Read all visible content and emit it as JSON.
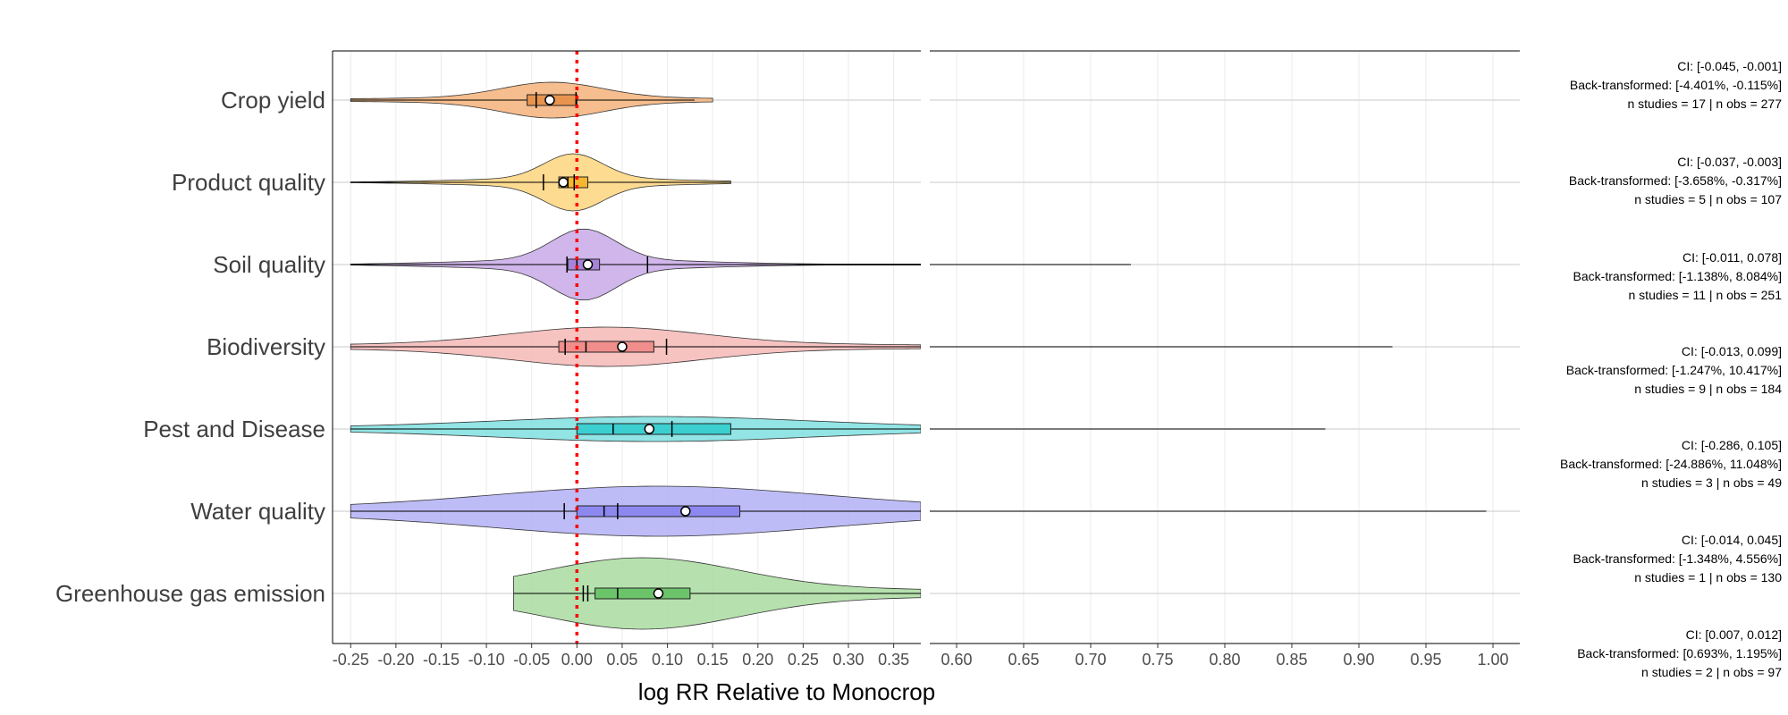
{
  "chart_data": {
    "type": "violin",
    "xlabel": "log RR Relative to Monocrop",
    "ylabel": "",
    "xlim_left": [
      -0.27,
      0.38
    ],
    "xlim_right": [
      0.58,
      1.02
    ],
    "xticks_left": [
      -0.25,
      -0.2,
      -0.15,
      -0.1,
      -0.05,
      0.0,
      0.05,
      0.1,
      0.15,
      0.2,
      0.25,
      0.3,
      0.35
    ],
    "xtick_labels_left": [
      "-0.25",
      "-0.20",
      "-0.15",
      "-0.10",
      "-0.05",
      "0.00",
      "0.05",
      "0.10",
      "0.15",
      "0.20",
      "0.25",
      "0.30",
      "0.35"
    ],
    "xticks_right": [
      0.6,
      0.65,
      0.7,
      0.75,
      0.8,
      0.85,
      0.9,
      0.95,
      1.0
    ],
    "xtick_labels_right": [
      "0.60",
      "0.65",
      "0.70",
      "0.75",
      "0.80",
      "0.85",
      "0.90",
      "0.95",
      "1.00"
    ],
    "reference_line": 0.0,
    "reference_color": "#ff0000",
    "grid": true,
    "legend": "none",
    "categories": [
      {
        "name": "Crop yield",
        "color": "#f5b27a",
        "box_color": "#e8944e",
        "min": -0.25,
        "max": 0.15,
        "whisker_max": 0.13,
        "q1": -0.055,
        "median": -0.03,
        "q3": 0.0,
        "mean": -0.03,
        "ci": [
          -0.045,
          -0.001
        ],
        "break_max": null
      },
      {
        "name": "Product quality",
        "color": "#fdd57e",
        "box_color": "#f5b731",
        "min": -0.25,
        "max": 0.17,
        "whisker_max": 0.17,
        "q1": -0.02,
        "median": -0.01,
        "q3": 0.012,
        "mean": -0.015,
        "ci": [
          -0.037,
          -0.003
        ],
        "break_max": null
      },
      {
        "name": "Soil quality",
        "color": "#c8a9e6",
        "box_color": "#a685d8",
        "min": -0.25,
        "max": 0.38,
        "whisker_max": 0.38,
        "q1": -0.01,
        "median": 0.0,
        "q3": 0.025,
        "mean": 0.012,
        "ci": [
          -0.011,
          0.078
        ],
        "break_max": 0.73
      },
      {
        "name": "Biodiversity",
        "color": "#f5b8b6",
        "box_color": "#f08e8c",
        "min": -0.25,
        "max": 0.38,
        "whisker_max": 0.38,
        "q1": -0.02,
        "median": 0.01,
        "q3": 0.085,
        "mean": 0.05,
        "ci": [
          -0.013,
          0.099
        ],
        "break_max": 0.925
      },
      {
        "name": "Pest and Disease",
        "color": "#7fdfe0",
        "box_color": "#3ccfd0",
        "min": -0.25,
        "max": 0.38,
        "whisker_max": 0.38,
        "q1": 0.0,
        "median": 0.04,
        "q3": 0.17,
        "mean": 0.08,
        "ci": [
          -0.286,
          0.105
        ],
        "break_max": 0.875
      },
      {
        "name": "Water quality",
        "color": "#b3b0f5",
        "box_color": "#8c88f0",
        "min": -0.25,
        "max": 0.38,
        "whisker_max": 0.38,
        "q1": 0.0,
        "median": 0.03,
        "q3": 0.18,
        "mean": 0.12,
        "ci": [
          -0.014,
          0.045
        ],
        "break_max": 0.995
      },
      {
        "name": "Greenhouse gas emission",
        "color": "#a9dca0",
        "box_color": "#6cc46a",
        "min": -0.07,
        "max": 0.38,
        "whisker_max": 0.38,
        "q1": 0.02,
        "median": 0.045,
        "q3": 0.125,
        "mean": 0.09,
        "ci": [
          0.007,
          0.012
        ],
        "break_max": null
      }
    ],
    "annotations": [
      {
        "ci": "CI: [-0.045, -0.001]",
        "back": "Back-transformed: [-4.401%, -0.115%]",
        "n": "n studies = 17 | n obs = 277"
      },
      {
        "ci": "CI: [-0.037, -0.003]",
        "back": "Back-transformed: [-3.658%, -0.317%]",
        "n": "n studies = 5 | n obs = 107"
      },
      {
        "ci": "CI: [-0.011, 0.078]",
        "back": "Back-transformed: [-1.138%, 8.084%]",
        "n": "n studies = 11 | n obs = 251"
      },
      {
        "ci": "CI: [-0.013, 0.099]",
        "back": "Back-transformed: [-1.247%, 10.417%]",
        "n": "n studies = 9 | n obs = 184"
      },
      {
        "ci": "CI: [-0.286, 0.105]",
        "back": "Back-transformed: [-24.886%, 11.048%]",
        "n": "n studies = 3 | n obs = 49"
      },
      {
        "ci": "CI: [-0.014, 0.045]",
        "back": "Back-transformed: [-1.348%, 4.556%]",
        "n": "n studies = 1 | n obs = 130"
      },
      {
        "ci": "CI: [0.007, 0.012]",
        "back": "Back-transformed: [0.693%, 1.195%]",
        "n": "n studies = 2 | n obs = 97"
      }
    ]
  }
}
